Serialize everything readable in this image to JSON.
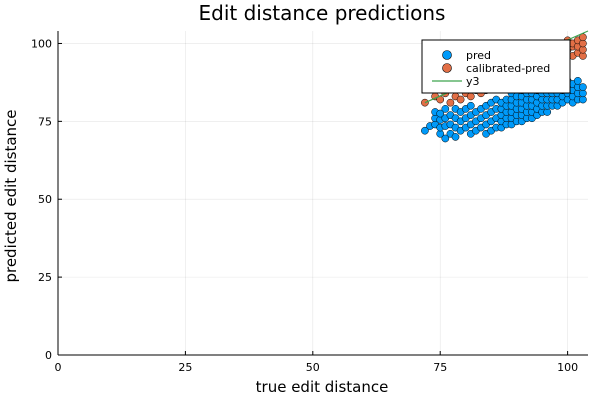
{
  "chart_data": {
    "type": "scatter",
    "title": "Edit distance predictions",
    "xlabel": "true edit distance",
    "ylabel": "predicted edit distance",
    "xlim": [
      0,
      104
    ],
    "ylim": [
      0,
      104
    ],
    "xticks": [
      0,
      25,
      50,
      75,
      100
    ],
    "yticks": [
      0,
      25,
      50,
      75,
      100
    ],
    "grid": true,
    "legend_position": "top-right",
    "series": [
      {
        "name": "pred",
        "kind": "scatter",
        "color": "#009af9",
        "points": [
          [
            72,
            72
          ],
          [
            73,
            73.5
          ],
          [
            74,
            74
          ],
          [
            74,
            76
          ],
          [
            74,
            78
          ],
          [
            75,
            71
          ],
          [
            75,
            73
          ],
          [
            75,
            75.5
          ],
          [
            75,
            77.5
          ],
          [
            76,
            69.5
          ],
          [
            76,
            73.5
          ],
          [
            76,
            76
          ],
          [
            76,
            79
          ],
          [
            77,
            71
          ],
          [
            77,
            74
          ],
          [
            77,
            77
          ],
          [
            78,
            70
          ],
          [
            78,
            73
          ],
          [
            78,
            76
          ],
          [
            78,
            79
          ],
          [
            79,
            72
          ],
          [
            79,
            75
          ],
          [
            79,
            78
          ],
          [
            80,
            73
          ],
          [
            80,
            76
          ],
          [
            80,
            79
          ],
          [
            81,
            71
          ],
          [
            81,
            74
          ],
          [
            81,
            77
          ],
          [
            81,
            80
          ],
          [
            82,
            72
          ],
          [
            82,
            75
          ],
          [
            82,
            78
          ],
          [
            83,
            73
          ],
          [
            83,
            76
          ],
          [
            83,
            79
          ],
          [
            84,
            71
          ],
          [
            84,
            74
          ],
          [
            84,
            77
          ],
          [
            84,
            80
          ],
          [
            85,
            72
          ],
          [
            85,
            75
          ],
          [
            85,
            78
          ],
          [
            85,
            81
          ],
          [
            86,
            73
          ],
          [
            86,
            76
          ],
          [
            86,
            79
          ],
          [
            86,
            82
          ],
          [
            87,
            73
          ],
          [
            87,
            75
          ],
          [
            87,
            77
          ],
          [
            87,
            79
          ],
          [
            87,
            81
          ],
          [
            88,
            74
          ],
          [
            88,
            76
          ],
          [
            88,
            78
          ],
          [
            88,
            80
          ],
          [
            88,
            82
          ],
          [
            89,
            74
          ],
          [
            89,
            76
          ],
          [
            89,
            78
          ],
          [
            89,
            80
          ],
          [
            89,
            82
          ],
          [
            89,
            84
          ],
          [
            90,
            75
          ],
          [
            90,
            77
          ],
          [
            90,
            79
          ],
          [
            90,
            81
          ],
          [
            90,
            83
          ],
          [
            91,
            75
          ],
          [
            91,
            77
          ],
          [
            91,
            79
          ],
          [
            91,
            81
          ],
          [
            91,
            83
          ],
          [
            91,
            85
          ],
          [
            92,
            76
          ],
          [
            92,
            78
          ],
          [
            92,
            80
          ],
          [
            92,
            82
          ],
          [
            92,
            84
          ],
          [
            93,
            76
          ],
          [
            93,
            78
          ],
          [
            93,
            80
          ],
          [
            93,
            82
          ],
          [
            93,
            84
          ],
          [
            94,
            77
          ],
          [
            94,
            79
          ],
          [
            94,
            81
          ],
          [
            94,
            83
          ],
          [
            94,
            85
          ],
          [
            95,
            78
          ],
          [
            95,
            80
          ],
          [
            95,
            82
          ],
          [
            95,
            84
          ],
          [
            95,
            86
          ],
          [
            96,
            78
          ],
          [
            96,
            80
          ],
          [
            96,
            82
          ],
          [
            96,
            84
          ],
          [
            96,
            86
          ],
          [
            97,
            80
          ],
          [
            97,
            82
          ],
          [
            97,
            84
          ],
          [
            97,
            86
          ],
          [
            98,
            80
          ],
          [
            98,
            82
          ],
          [
            98,
            84
          ],
          [
            98,
            86
          ],
          [
            98,
            88
          ],
          [
            99,
            81
          ],
          [
            99,
            83
          ],
          [
            99,
            85
          ],
          [
            99,
            87
          ],
          [
            100,
            82
          ],
          [
            100,
            84
          ],
          [
            100,
            86
          ],
          [
            100,
            88
          ],
          [
            101,
            81
          ],
          [
            101,
            83
          ],
          [
            101,
            85
          ],
          [
            101,
            87
          ],
          [
            102,
            82
          ],
          [
            102,
            84
          ],
          [
            102,
            86
          ],
          [
            102,
            88
          ],
          [
            103,
            82
          ],
          [
            103,
            84
          ],
          [
            103,
            86
          ]
        ]
      },
      {
        "name": "calibrated-pred",
        "kind": "scatter",
        "color": "#e26f46",
        "points": [
          [
            72,
            81
          ],
          [
            74,
            83
          ],
          [
            75,
            82
          ],
          [
            76,
            84
          ],
          [
            77,
            81
          ],
          [
            78,
            83
          ],
          [
            79,
            82
          ],
          [
            80,
            84
          ],
          [
            81,
            83
          ],
          [
            82,
            85
          ],
          [
            83,
            84
          ],
          [
            84,
            85
          ],
          [
            85,
            86
          ],
          [
            86,
            86
          ],
          [
            87,
            87
          ],
          [
            88,
            88
          ],
          [
            89,
            88
          ],
          [
            90,
            89
          ],
          [
            91,
            89
          ],
          [
            92,
            90
          ],
          [
            93,
            90
          ],
          [
            94,
            91
          ],
          [
            95,
            92
          ],
          [
            95,
            94
          ],
          [
            96,
            93
          ],
          [
            96,
            95
          ],
          [
            97,
            94
          ],
          [
            97,
            96
          ],
          [
            98,
            95
          ],
          [
            98,
            97
          ],
          [
            99,
            95
          ],
          [
            99,
            98
          ],
          [
            100,
            96
          ],
          [
            100,
            98
          ],
          [
            100,
            101
          ],
          [
            101,
            96
          ],
          [
            101,
            99
          ],
          [
            101,
            100
          ],
          [
            102,
            97
          ],
          [
            102,
            99
          ],
          [
            102,
            101
          ],
          [
            103,
            96
          ],
          [
            103,
            98
          ],
          [
            103,
            100
          ],
          [
            103,
            102
          ]
        ]
      },
      {
        "name": "y3",
        "kind": "line",
        "color": "#3da44d",
        "points": [
          [
            72,
            81
          ],
          [
            104,
            104
          ]
        ]
      }
    ]
  }
}
